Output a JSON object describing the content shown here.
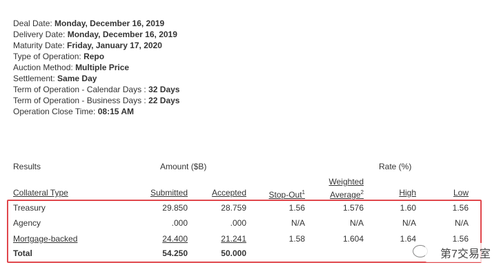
{
  "details": [
    {
      "label": "Deal Date:",
      "value": "Monday, December 16, 2019"
    },
    {
      "label": "Delivery Date:",
      "value": "Monday, December 16, 2019"
    },
    {
      "label": "Maturity Date:",
      "value": "Friday, January 17, 2020"
    },
    {
      "label": "Type of Operation:",
      "value": "Repo"
    },
    {
      "label": "Auction Method:",
      "value": "Multiple Price"
    },
    {
      "label": "Settlement:",
      "value": "Same Day"
    },
    {
      "label": "Term of Operation - Calendar Days :",
      "value": "32 Days"
    },
    {
      "label": "Term of Operation - Business Days :",
      "value": "22 Days"
    },
    {
      "label": "Operation Close Time:",
      "value": "08:15 AM"
    }
  ],
  "table": {
    "group_headers": [
      "Results",
      "Amount ($B)",
      "Rate (%)"
    ],
    "columns": [
      {
        "lines": [
          "Collateral Type"
        ]
      },
      {
        "lines": [
          "Submitted"
        ]
      },
      {
        "lines": [
          "Accepted"
        ]
      },
      {
        "lines": [
          "Stop-Out"
        ],
        "note": "1"
      },
      {
        "lines": [
          "Weighted",
          "Average"
        ],
        "note": "2"
      },
      {
        "lines": [
          "High"
        ]
      },
      {
        "lines": [
          "Low"
        ]
      }
    ],
    "rows": [
      [
        "Treasury",
        "29.850",
        "28.759",
        "1.56",
        "1.576",
        "1.60",
        "1.56"
      ],
      [
        "Agency",
        ".000",
        ".000",
        "N/A",
        "N/A",
        "N/A",
        "N/A"
      ],
      [
        "Mortgage-backed",
        "24.400",
        "21.241",
        "1.58",
        "1.604",
        "1.64",
        "1.56"
      ],
      [
        "Total",
        "54.250",
        "50.000"
      ]
    ]
  },
  "watermark": "第7交易室"
}
